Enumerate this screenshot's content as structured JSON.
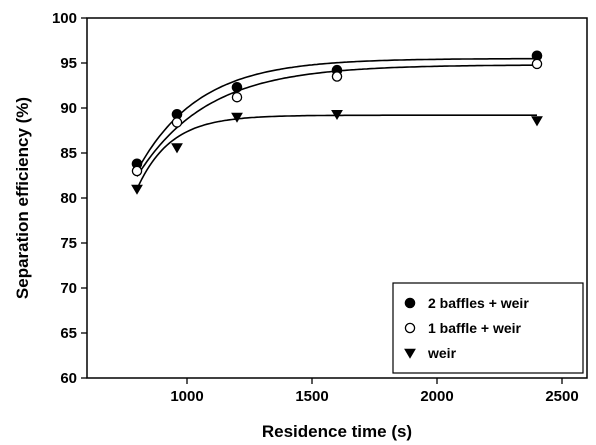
{
  "chart_data": {
    "type": "scatter",
    "title": "",
    "xlabel": "Residence time (s)",
    "ylabel": "Separation efficiency (%)",
    "xlim": [
      600,
      2600
    ],
    "ylim": [
      60,
      100
    ],
    "xticks": [
      1000,
      1500,
      2000,
      2500
    ],
    "yticks": [
      60,
      65,
      70,
      75,
      80,
      85,
      90,
      95,
      100
    ],
    "grid": false,
    "legend_position": "bottom-right",
    "fitted_curves": true,
    "series": [
      {
        "name": "2 baffles + weir",
        "marker": "filled-circle",
        "x": [
          800,
          960,
          1200,
          1600,
          2400
        ],
        "y": [
          83.8,
          89.3,
          92.3,
          94.2,
          95.8
        ],
        "fit": {
          "a": 95.5,
          "b": 12.5,
          "k": 0.0041,
          "x0": 800,
          "x_end": 2400
        }
      },
      {
        "name": "1 baffle + weir",
        "marker": "open-circle",
        "x": [
          800,
          960,
          1200,
          1600,
          2400
        ],
        "y": [
          83.0,
          88.4,
          91.2,
          93.5,
          94.9
        ],
        "fit": {
          "a": 94.8,
          "b": 12.4,
          "k": 0.0036,
          "x0": 800,
          "x_end": 2400
        }
      },
      {
        "name": "weir",
        "marker": "filled-triangle-down",
        "x": [
          800,
          960,
          1200,
          1600,
          2400
        ],
        "y": [
          81.0,
          85.6,
          89.0,
          89.3,
          88.6
        ],
        "fit": {
          "a": 89.2,
          "b": 8.2,
          "k": 0.0075,
          "x0": 800,
          "x_end": 2400
        }
      }
    ]
  }
}
